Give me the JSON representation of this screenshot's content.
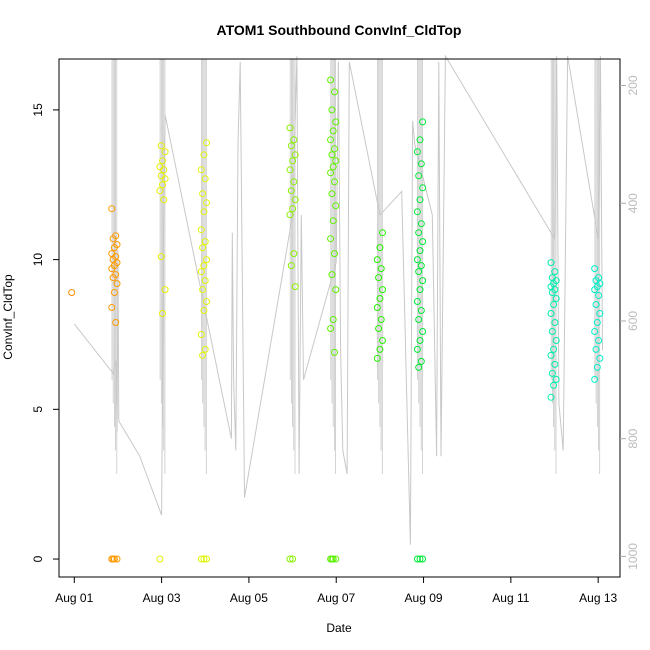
{
  "chart_data": {
    "type": "scatter",
    "title": "ATOM1 Southbound ConvInf_CldTop",
    "xlabel": "Date",
    "ylabel": "ConvInf_CldTop",
    "x_unit": "days since Aug 01",
    "xlim": [
      -0.35,
      12.5
    ],
    "ylim": [
      -0.6,
      16.7
    ],
    "x_ticks": [
      0,
      2,
      4,
      6,
      8,
      10,
      12
    ],
    "x_tick_labels": [
      "Aug 01",
      "Aug 03",
      "Aug 05",
      "Aug 07",
      "Aug 09",
      "Aug 11",
      "Aug 13"
    ],
    "y_ticks": [
      0,
      5,
      10,
      15
    ],
    "y_tick_labels": [
      "0",
      "5",
      "10",
      "15"
    ],
    "y2_range": [
      1035,
      155
    ],
    "y2_ticks": [
      200,
      400,
      600,
      800,
      1000
    ],
    "y2_tick_labels": [
      "200",
      "400",
      "600",
      "800",
      "1000"
    ],
    "pressure_line_color": "#c8c8c8",
    "pressure_track": [
      [
        0.0,
        605
      ],
      [
        0.9,
        690
      ],
      [
        0.95,
        665
      ],
      [
        0.98,
        790
      ],
      [
        1.0,
        480
      ],
      [
        1.02,
        770
      ],
      [
        1.5,
        830
      ],
      [
        2.0,
        930
      ],
      [
        2.05,
        380
      ],
      [
        2.08,
        250
      ],
      [
        3.6,
        800
      ],
      [
        3.62,
        450
      ],
      [
        3.65,
        700
      ],
      [
        3.7,
        820
      ],
      [
        3.75,
        300
      ],
      [
        3.8,
        160
      ],
      [
        3.9,
        900
      ],
      [
        5.0,
        420
      ],
      [
        5.1,
        150
      ],
      [
        5.15,
        860
      ],
      [
        5.2,
        420
      ],
      [
        5.25,
        700
      ],
      [
        6.0,
        500
      ],
      [
        6.05,
        160
      ],
      [
        6.1,
        650
      ],
      [
        6.15,
        820
      ],
      [
        6.25,
        860
      ],
      [
        6.3,
        160
      ],
      [
        7.0,
        420
      ],
      [
        7.5,
        380
      ],
      [
        7.7,
        980
      ],
      [
        7.75,
        260
      ],
      [
        7.8,
        300
      ],
      [
        8.2,
        420
      ],
      [
        8.3,
        830
      ],
      [
        8.35,
        160
      ],
      [
        8.4,
        830
      ],
      [
        8.5,
        150
      ],
      [
        11.0,
        460
      ],
      [
        11.05,
        150
      ],
      [
        11.1,
        740
      ],
      [
        11.2,
        820
      ],
      [
        11.3,
        150
      ],
      [
        12.0,
        460
      ],
      [
        12.05,
        150
      ],
      [
        12.1,
        650
      ]
    ],
    "series": [
      {
        "name": "Aug 01",
        "color": "#ff8c00",
        "x_center": 0.0,
        "y_values": [
          8.9
        ]
      },
      {
        "name": "Aug 01-02",
        "color": "#ff9a00",
        "x_center": 0.92,
        "y_values": [
          0,
          0,
          0,
          0,
          7.9,
          8.4,
          8.9,
          9.2,
          9.4,
          9.5,
          9.7,
          9.8,
          9.9,
          10.0,
          10.1,
          10.2,
          10.4,
          10.5,
          10.7,
          10.8,
          11.7
        ]
      },
      {
        "name": "Aug 03",
        "color": "#e6f000",
        "x_center": 2.02,
        "y_values": [
          0,
          8.2,
          9.0,
          10.1,
          12.0,
          12.3,
          12.5,
          12.7,
          12.8,
          13.0,
          13.1,
          13.3,
          13.6,
          13.8
        ]
      },
      {
        "name": "Aug 04",
        "color": "#e1f50a",
        "x_center": 2.97,
        "y_values": [
          0,
          0,
          0,
          6.8,
          7.0,
          7.5,
          8.3,
          8.6,
          9.0,
          9.3,
          9.6,
          9.8,
          10.0,
          10.4,
          10.6,
          11.0,
          11.6,
          11.9,
          12.2,
          12.7,
          13.0,
          13.5,
          13.9
        ]
      },
      {
        "name": "Aug 06",
        "color": "#8cf000",
        "x_center": 5.0,
        "y_values": [
          0,
          0,
          9.1,
          9.8,
          10.2,
          11.5,
          11.7,
          12.0,
          12.3,
          12.6,
          13.0,
          13.3,
          13.5,
          13.8,
          14.0,
          14.4
        ]
      },
      {
        "name": "Aug 07",
        "color": "#5ef000",
        "x_center": 5.93,
        "y_values": [
          0,
          0,
          0,
          0,
          6.9,
          7.7,
          8.0,
          9.0,
          9.5,
          10.2,
          10.7,
          11.3,
          11.8,
          12.2,
          12.6,
          12.9,
          13.1,
          13.3,
          13.5,
          13.7,
          14.0,
          14.3,
          14.6,
          15.0,
          15.6,
          16.0
        ]
      },
      {
        "name": "Aug 08",
        "color": "#25f000",
        "x_center": 7.0,
        "y_values": [
          6.7,
          7.0,
          7.3,
          7.7,
          8.0,
          8.4,
          8.7,
          9.0,
          9.4,
          9.7,
          10.0,
          10.4,
          10.9
        ]
      },
      {
        "name": "Aug 09",
        "color": "#00e838",
        "x_center": 7.92,
        "y_values": [
          0,
          0,
          0,
          6.4,
          6.6,
          7.0,
          7.3,
          7.6,
          8.0,
          8.3,
          8.6,
          9.0,
          9.3,
          9.6,
          9.8,
          10.0,
          10.3,
          10.6,
          10.9,
          11.2,
          11.6,
          12.0,
          12.4,
          12.8,
          13.2,
          13.6,
          14.0,
          14.6
        ]
      },
      {
        "name": "Aug 12",
        "color": "#00f0b0",
        "x_center": 10.98,
        "y_values": [
          5.4,
          5.8,
          6.0,
          6.2,
          6.5,
          6.8,
          7.0,
          7.3,
          7.6,
          7.9,
          8.2,
          8.5,
          8.7,
          8.9,
          9.0,
          9.1,
          9.2,
          9.3,
          9.4,
          9.6,
          9.9
        ]
      },
      {
        "name": "Aug 13",
        "color": "#00f0c8",
        "x_center": 11.98,
        "y_values": [
          6.0,
          6.4,
          6.7,
          7.0,
          7.3,
          7.6,
          7.9,
          8.2,
          8.5,
          8.8,
          9.0,
          9.1,
          9.2,
          9.3,
          9.4,
          9.7
        ]
      }
    ]
  }
}
